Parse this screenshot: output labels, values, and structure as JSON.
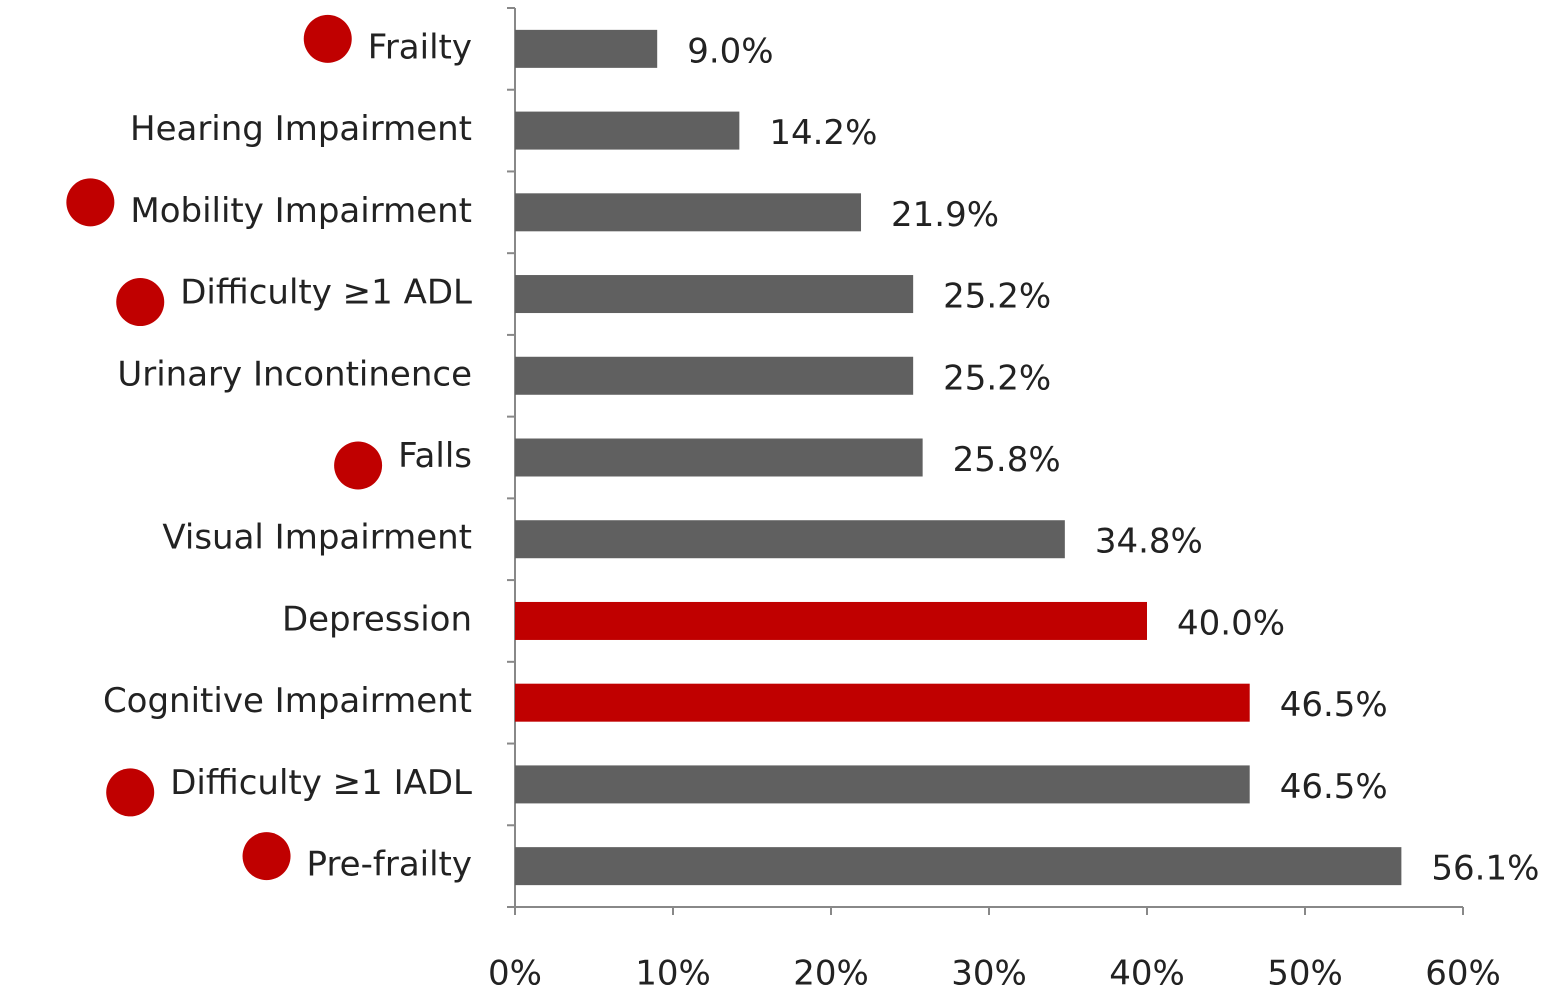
{
  "chart_data": {
    "type": "bar",
    "orientation": "horizontal",
    "categories": [
      "Frailty",
      "Hearing Impairment",
      "Mobility Impairment",
      "Difficulty ≥1 ADL",
      "Urinary Incontinence",
      "Falls",
      "Visual Impairment",
      "Depression",
      "Cognitive Impairment",
      "Difficulty ≥1 IADL",
      "Pre-frailty"
    ],
    "values": [
      9.0,
      14.2,
      21.9,
      25.2,
      25.2,
      25.8,
      34.8,
      40.0,
      46.5,
      46.5,
      56.1
    ],
    "value_labels": [
      "9.0%",
      "14.2%",
      "21.9%",
      "25.2%",
      "25.2%",
      "25.8%",
      "34.8%",
      "40.0%",
      "46.5%",
      "46.5%",
      "56.1%"
    ],
    "colors": [
      "#606060",
      "#606060",
      "#606060",
      "#606060",
      "#606060",
      "#606060",
      "#606060",
      "#c00000",
      "#c00000",
      "#606060",
      "#606060"
    ],
    "marked": [
      true,
      false,
      true,
      true,
      false,
      true,
      false,
      false,
      false,
      true,
      true
    ],
    "marker_color": "#c00000",
    "xlim": [
      0,
      60
    ],
    "xticks": [
      {
        "value": 0,
        "label": "0%"
      },
      {
        "value": 10,
        "label": "10%"
      },
      {
        "value": 20,
        "label": "20%"
      },
      {
        "value": 30,
        "label": "30%"
      },
      {
        "value": 40,
        "label": "40%"
      },
      {
        "value": 50,
        "label": "50%"
      },
      {
        "value": 60,
        "label": "60%"
      }
    ]
  }
}
